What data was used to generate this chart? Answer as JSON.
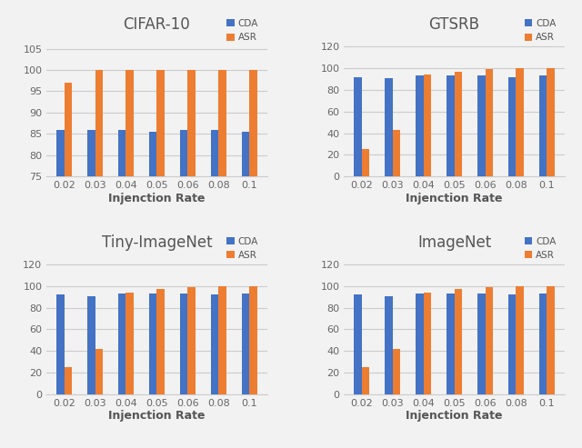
{
  "subplots": [
    {
      "title": "CIFAR-10",
      "x_labels": [
        "0.02",
        "0.03",
        "0.04",
        "0.05",
        "0.06",
        "0.08",
        "0.1"
      ],
      "CDA": [
        86,
        86,
        86,
        85.5,
        86,
        86,
        85.5
      ],
      "ASR": [
        97,
        100,
        100,
        100,
        100,
        100,
        100
      ],
      "ylim": [
        75,
        108
      ],
      "yticks": [
        75,
        80,
        85,
        90,
        95,
        100,
        105
      ]
    },
    {
      "title": "GTSRB",
      "x_labels": [
        "0.02",
        "0.03",
        "0.04",
        "0.05",
        "0.06",
        "0.08",
        "0.1"
      ],
      "CDA": [
        92,
        91,
        93,
        93,
        93,
        92,
        93
      ],
      "ASR": [
        25,
        43,
        94,
        97,
        99,
        100,
        100
      ],
      "ylim": [
        0,
        130
      ],
      "yticks": [
        0,
        20,
        40,
        60,
        80,
        100,
        120
      ]
    },
    {
      "title": "Tiny-ImageNet",
      "x_labels": [
        "0.02",
        "0.03",
        "0.04",
        "0.05",
        "0.06",
        "0.08",
        "0.1"
      ],
      "CDA": [
        92,
        91,
        93,
        93,
        93,
        92,
        93
      ],
      "ASR": [
        25,
        42,
        94,
        97,
        99,
        100,
        100
      ],
      "ylim": [
        0,
        130
      ],
      "yticks": [
        0,
        20,
        40,
        60,
        80,
        100,
        120
      ]
    },
    {
      "title": "ImageNet",
      "x_labels": [
        "0.02",
        "0.03",
        "0.04",
        "0.05",
        "0.06",
        "0.08",
        "0.1"
      ],
      "CDA": [
        92,
        91,
        93,
        93,
        93,
        92,
        93
      ],
      "ASR": [
        25,
        42,
        94,
        97,
        99,
        100,
        100
      ],
      "ylim": [
        0,
        130
      ],
      "yticks": [
        0,
        20,
        40,
        60,
        80,
        100,
        120
      ]
    }
  ],
  "cda_color": "#4472C4",
  "asr_color": "#ED7D31",
  "xlabel": "Injenction Rate",
  "legend_labels": [
    "CDA",
    "ASR"
  ],
  "bar_width": 0.25,
  "title_fontsize": 12,
  "axis_label_fontsize": 9,
  "tick_fontsize": 8,
  "legend_fontsize": 7.5,
  "bg_color": "#F2F2F2"
}
